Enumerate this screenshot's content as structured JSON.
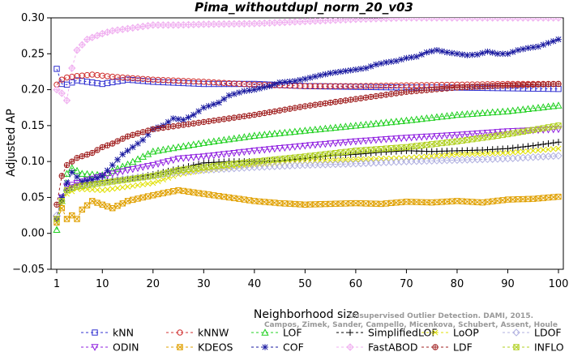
{
  "chart_data": {
    "type": "line",
    "title": "Pima_withoutdupl_norm_20_v03",
    "xlabel": "Neighborhood size",
    "ylabel": "Adjusted AP",
    "watermark": "Campos, Zimek, Sander, Campello, Micenkova, Schubert, Assent, Houle",
    "watermark_top": "Unsupervised Outlier Detection. DAMI, 2015.",
    "xlim": [
      1,
      100
    ],
    "ylim": [
      -0.05,
      0.3
    ],
    "x_ticks": [
      1,
      10,
      20,
      30,
      40,
      50,
      60,
      70,
      80,
      90,
      100
    ],
    "y_ticks": [
      -0.05,
      0.0,
      0.05,
      0.1,
      0.15,
      0.2,
      0.25,
      0.3
    ],
    "y_tick_labels": [
      "−0.05",
      "0.00",
      "0.05",
      "0.10",
      "0.15",
      "0.20",
      "0.25",
      "0.30"
    ],
    "legend_position": "bottom",
    "series": [
      {
        "name": "kNN",
        "color": "#3030d0",
        "marker": "square",
        "dash": "3,3",
        "points": [
          [
            1,
            0.229
          ],
          [
            2,
            0.208
          ],
          [
            3,
            0.207
          ],
          [
            5,
            0.213
          ],
          [
            10,
            0.208
          ],
          [
            15,
            0.214
          ],
          [
            20,
            0.211
          ],
          [
            30,
            0.208
          ],
          [
            40,
            0.208
          ],
          [
            50,
            0.205
          ],
          [
            60,
            0.204
          ],
          [
            70,
            0.203
          ],
          [
            80,
            0.203
          ],
          [
            90,
            0.202
          ],
          [
            100,
            0.201
          ]
        ]
      },
      {
        "name": "kNNW",
        "color": "#d03030",
        "marker": "circle",
        "dash": "3,3",
        "points": [
          [
            1,
            0.207
          ],
          [
            2,
            0.214
          ],
          [
            3,
            0.217
          ],
          [
            5,
            0.219
          ],
          [
            8,
            0.221
          ],
          [
            12,
            0.218
          ],
          [
            20,
            0.214
          ],
          [
            30,
            0.211
          ],
          [
            40,
            0.207
          ],
          [
            50,
            0.205
          ],
          [
            60,
            0.205
          ],
          [
            70,
            0.206
          ],
          [
            80,
            0.207
          ],
          [
            90,
            0.208
          ],
          [
            100,
            0.208
          ]
        ]
      },
      {
        "name": "LOF",
        "color": "#20d020",
        "marker": "triangle-up",
        "dash": "3,3",
        "points": [
          [
            1,
            0.005
          ],
          [
            2,
            0.045
          ],
          [
            3,
            0.083
          ],
          [
            4,
            0.091
          ],
          [
            6,
            0.083
          ],
          [
            10,
            0.081
          ],
          [
            15,
            0.096
          ],
          [
            20,
            0.114
          ],
          [
            30,
            0.126
          ],
          [
            40,
            0.136
          ],
          [
            50,
            0.143
          ],
          [
            60,
            0.15
          ],
          [
            70,
            0.157
          ],
          [
            80,
            0.165
          ],
          [
            90,
            0.17
          ],
          [
            100,
            0.178
          ]
        ]
      },
      {
        "name": "SimplifiedLOF",
        "color": "#000000",
        "marker": "plus",
        "dash": "3,3",
        "points": [
          [
            1,
            0.02
          ],
          [
            2,
            0.045
          ],
          [
            3,
            0.06
          ],
          [
            5,
            0.068
          ],
          [
            10,
            0.073
          ],
          [
            15,
            0.076
          ],
          [
            20,
            0.082
          ],
          [
            25,
            0.09
          ],
          [
            30,
            0.098
          ],
          [
            35,
            0.1
          ],
          [
            40,
            0.1
          ],
          [
            45,
            0.101
          ],
          [
            50,
            0.104
          ],
          [
            55,
            0.108
          ],
          [
            60,
            0.11
          ],
          [
            65,
            0.113
          ],
          [
            70,
            0.115
          ],
          [
            75,
            0.114
          ],
          [
            80,
            0.115
          ],
          [
            85,
            0.116
          ],
          [
            90,
            0.118
          ],
          [
            95,
            0.122
          ],
          [
            100,
            0.127
          ]
        ]
      },
      {
        "name": "LoOP",
        "color": "#e0e000",
        "marker": "x",
        "dash": "3,3",
        "points": [
          [
            1,
            0.02
          ],
          [
            2,
            0.04
          ],
          [
            3,
            0.055
          ],
          [
            5,
            0.062
          ],
          [
            10,
            0.06
          ],
          [
            15,
            0.065
          ],
          [
            20,
            0.07
          ],
          [
            25,
            0.082
          ],
          [
            30,
            0.088
          ],
          [
            40,
            0.095
          ],
          [
            50,
            0.1
          ],
          [
            60,
            0.103
          ],
          [
            70,
            0.105
          ],
          [
            80,
            0.11
          ],
          [
            90,
            0.112
          ],
          [
            100,
            0.118
          ]
        ]
      },
      {
        "name": "LDOF",
        "color": "#b0b0e0",
        "marker": "diamond",
        "dash": "3,3",
        "points": [
          [
            1,
            0.025
          ],
          [
            2,
            0.045
          ],
          [
            3,
            0.06
          ],
          [
            5,
            0.067
          ],
          [
            10,
            0.072
          ],
          [
            15,
            0.076
          ],
          [
            20,
            0.08
          ],
          [
            25,
            0.085
          ],
          [
            30,
            0.088
          ],
          [
            40,
            0.092
          ],
          [
            50,
            0.095
          ],
          [
            60,
            0.097
          ],
          [
            70,
            0.1
          ],
          [
            80,
            0.102
          ],
          [
            90,
            0.104
          ],
          [
            100,
            0.108
          ]
        ]
      },
      {
        "name": "ODIN",
        "color": "#9020e0",
        "marker": "triangle-down",
        "dash": "3,3",
        "points": [
          [
            1,
            0.02
          ],
          [
            2,
            0.05
          ],
          [
            3,
            0.065
          ],
          [
            5,
            0.07
          ],
          [
            10,
            0.08
          ],
          [
            15,
            0.088
          ],
          [
            20,
            0.095
          ],
          [
            25,
            0.104
          ],
          [
            30,
            0.107
          ],
          [
            40,
            0.115
          ],
          [
            50,
            0.122
          ],
          [
            60,
            0.128
          ],
          [
            70,
            0.133
          ],
          [
            80,
            0.137
          ],
          [
            90,
            0.142
          ],
          [
            100,
            0.145
          ]
        ]
      },
      {
        "name": "KDEOS",
        "color": "#e0a000",
        "marker": "square-x",
        "dash": "3,3",
        "points": [
          [
            1,
            0.015
          ],
          [
            2,
            0.035
          ],
          [
            3,
            0.02
          ],
          [
            4,
            0.025
          ],
          [
            5,
            0.02
          ],
          [
            6,
            0.033
          ],
          [
            8,
            0.045
          ],
          [
            10,
            0.04
          ],
          [
            12,
            0.035
          ],
          [
            15,
            0.045
          ],
          [
            18,
            0.05
          ],
          [
            22,
            0.056
          ],
          [
            25,
            0.06
          ],
          [
            28,
            0.057
          ],
          [
            30,
            0.055
          ],
          [
            35,
            0.05
          ],
          [
            40,
            0.045
          ],
          [
            45,
            0.042
          ],
          [
            50,
            0.04
          ],
          [
            55,
            0.041
          ],
          [
            60,
            0.042
          ],
          [
            65,
            0.041
          ],
          [
            70,
            0.044
          ],
          [
            75,
            0.043
          ],
          [
            80,
            0.045
          ],
          [
            85,
            0.043
          ],
          [
            90,
            0.047
          ],
          [
            95,
            0.048
          ],
          [
            100,
            0.051
          ]
        ]
      },
      {
        "name": "COF",
        "color": "#1a1aa0",
        "marker": "asterisk",
        "dash": "3,3",
        "points": [
          [
            1,
            0.02
          ],
          [
            2,
            0.05
          ],
          [
            3,
            0.07
          ],
          [
            4,
            0.085
          ],
          [
            6,
            0.072
          ],
          [
            8,
            0.075
          ],
          [
            10,
            0.08
          ],
          [
            12,
            0.095
          ],
          [
            14,
            0.11
          ],
          [
            16,
            0.12
          ],
          [
            18,
            0.13
          ],
          [
            20,
            0.145
          ],
          [
            22,
            0.15
          ],
          [
            24,
            0.16
          ],
          [
            26,
            0.158
          ],
          [
            28,
            0.165
          ],
          [
            30,
            0.175
          ],
          [
            33,
            0.182
          ],
          [
            35,
            0.192
          ],
          [
            38,
            0.198
          ],
          [
            40,
            0.2
          ],
          [
            43,
            0.205
          ],
          [
            45,
            0.21
          ],
          [
            48,
            0.212
          ],
          [
            50,
            0.215
          ],
          [
            53,
            0.22
          ],
          [
            55,
            0.223
          ],
          [
            58,
            0.226
          ],
          [
            60,
            0.228
          ],
          [
            62,
            0.23
          ],
          [
            64,
            0.235
          ],
          [
            66,
            0.238
          ],
          [
            68,
            0.24
          ],
          [
            70,
            0.244
          ],
          [
            72,
            0.246
          ],
          [
            74,
            0.252
          ],
          [
            76,
            0.255
          ],
          [
            78,
            0.252
          ],
          [
            80,
            0.25
          ],
          [
            82,
            0.248
          ],
          [
            84,
            0.249
          ],
          [
            86,
            0.253
          ],
          [
            88,
            0.25
          ],
          [
            90,
            0.25
          ],
          [
            92,
            0.255
          ],
          [
            94,
            0.258
          ],
          [
            96,
            0.26
          ],
          [
            98,
            0.265
          ],
          [
            100,
            0.27
          ]
        ]
      },
      {
        "name": "FastABOD",
        "color": "#f0b0f0",
        "marker": "diamond-plus",
        "dash": "3,3",
        "points": [
          [
            1,
            0.2
          ],
          [
            2,
            0.195
          ],
          [
            3,
            0.185
          ],
          [
            4,
            0.23
          ],
          [
            5,
            0.255
          ],
          [
            7,
            0.27
          ],
          [
            10,
            0.278
          ],
          [
            12,
            0.282
          ],
          [
            15,
            0.285
          ],
          [
            20,
            0.29
          ],
          [
            25,
            0.29
          ],
          [
            30,
            0.291
          ],
          [
            40,
            0.292
          ],
          [
            50,
            0.295
          ],
          [
            60,
            0.298
          ],
          [
            70,
            0.3
          ],
          [
            80,
            0.3
          ],
          [
            90,
            0.3
          ],
          [
            100,
            0.3
          ]
        ]
      },
      {
        "name": "LDF",
        "color": "#a02020",
        "marker": "circle-plus",
        "dash": "3,3",
        "points": [
          [
            1,
            0.04
          ],
          [
            2,
            0.08
          ],
          [
            3,
            0.095
          ],
          [
            5,
            0.105
          ],
          [
            8,
            0.112
          ],
          [
            10,
            0.12
          ],
          [
            12,
            0.125
          ],
          [
            15,
            0.135
          ],
          [
            20,
            0.145
          ],
          [
            25,
            0.15
          ],
          [
            30,
            0.155
          ],
          [
            40,
            0.165
          ],
          [
            50,
            0.177
          ],
          [
            60,
            0.187
          ],
          [
            70,
            0.197
          ],
          [
            80,
            0.203
          ],
          [
            90,
            0.206
          ],
          [
            100,
            0.208
          ]
        ]
      },
      {
        "name": "INFLO",
        "color": "#b0d020",
        "marker": "square-x",
        "dash": "3,3",
        "points": [
          [
            1,
            0.02
          ],
          [
            2,
            0.045
          ],
          [
            3,
            0.06
          ],
          [
            5,
            0.065
          ],
          [
            10,
            0.07
          ],
          [
            15,
            0.075
          ],
          [
            20,
            0.08
          ],
          [
            25,
            0.088
          ],
          [
            30,
            0.092
          ],
          [
            40,
            0.1
          ],
          [
            50,
            0.107
          ],
          [
            60,
            0.115
          ],
          [
            70,
            0.12
          ],
          [
            80,
            0.128
          ],
          [
            90,
            0.138
          ],
          [
            100,
            0.15
          ]
        ]
      }
    ]
  }
}
